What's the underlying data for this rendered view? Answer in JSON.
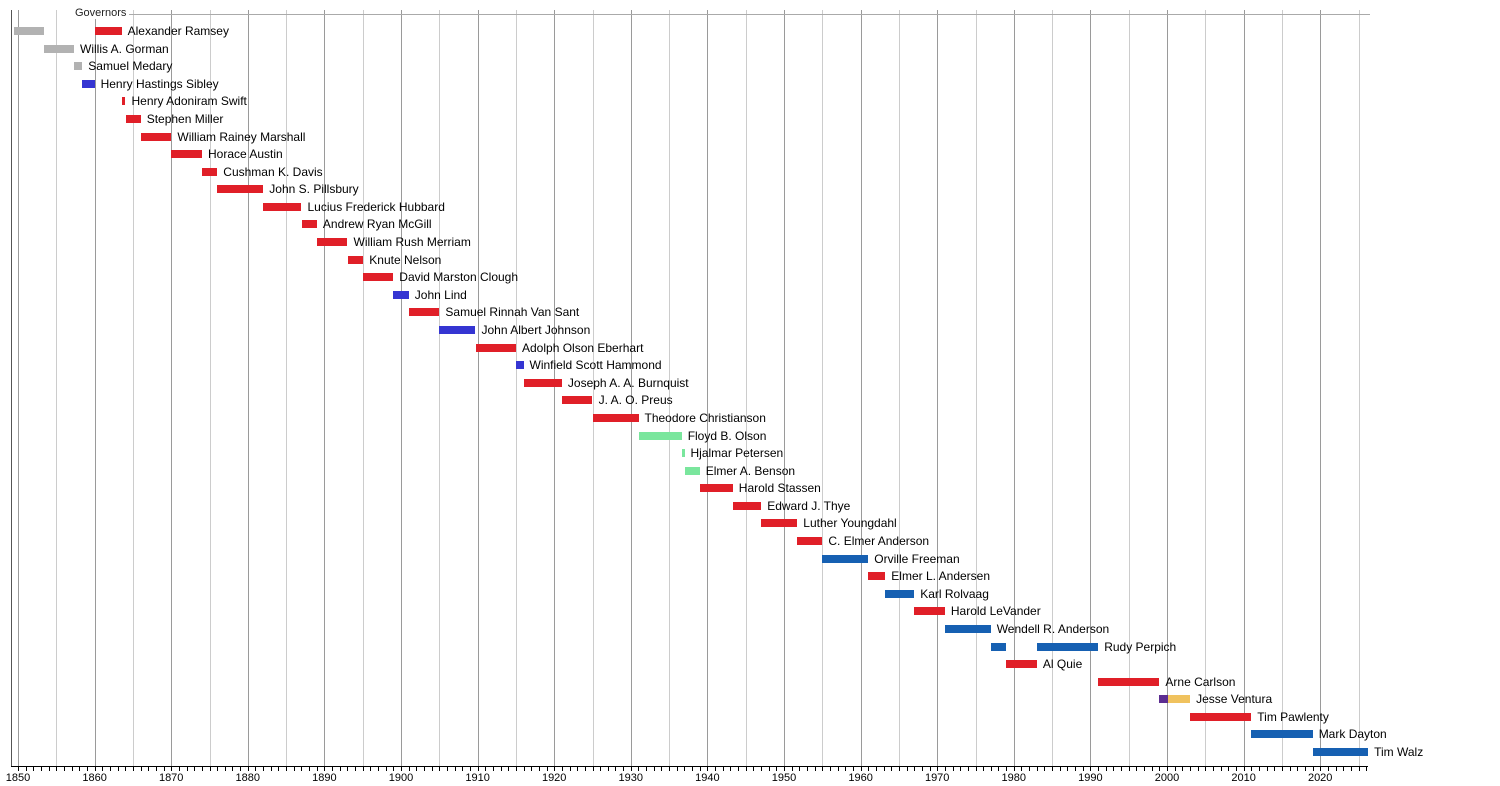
{
  "chart_data": {
    "type": "timeline",
    "title": "Governors",
    "axis": {
      "x_min": 1849.1,
      "x_max": 2026.3,
      "decade_labels": [
        "1850",
        "1860",
        "1870",
        "1880",
        "1890",
        "1900",
        "1910",
        "1920",
        "1930",
        "1940",
        "1950",
        "1960",
        "1970",
        "1980",
        "1990",
        "2000",
        "2010",
        "2020"
      ],
      "gridline_start": 1850,
      "gridline_end": 2025,
      "gridline_step": 5,
      "tick_step": 1,
      "grid_on": true
    },
    "colors": {
      "gray": "#b2b2b2",
      "red": "#e01f28",
      "blue": "#3535d2",
      "green": "#7ae69d",
      "dfl_blue": "#1660b2",
      "purple": "#5c2d91",
      "yellow": "#f0c25e",
      "decade_grid": "#9a9a9a",
      "half_decade_grid": "#cccccc",
      "axis_line": "#000000",
      "border_line": "#555555",
      "top_line": "#aaaaaa"
    },
    "governors": [
      {
        "name": "Alexander Ramsey",
        "segments": [
          {
            "start": 1849.42,
            "end": 1853.37,
            "color": "gray"
          },
          {
            "start": 1860.0,
            "end": 1863.52,
            "color": "red"
          }
        ]
      },
      {
        "name": "Willis A. Gorman",
        "segments": [
          {
            "start": 1853.37,
            "end": 1857.31,
            "color": "gray"
          }
        ]
      },
      {
        "name": "Samuel Medary",
        "segments": [
          {
            "start": 1857.31,
            "end": 1858.39,
            "color": "gray"
          }
        ]
      },
      {
        "name": "Henry Hastings Sibley",
        "segments": [
          {
            "start": 1858.39,
            "end": 1860.0,
            "color": "blue"
          }
        ]
      },
      {
        "name": "Henry Adoniram Swift",
        "segments": [
          {
            "start": 1863.52,
            "end": 1864.03,
            "color": "red"
          }
        ]
      },
      {
        "name": "Stephen Miller",
        "segments": [
          {
            "start": 1864.03,
            "end": 1866.02,
            "color": "red"
          }
        ]
      },
      {
        "name": "William Rainey Marshall",
        "segments": [
          {
            "start": 1866.02,
            "end": 1870.02,
            "color": "red"
          }
        ]
      },
      {
        "name": "Horace Austin",
        "segments": [
          {
            "start": 1870.02,
            "end": 1874.02,
            "color": "red"
          }
        ]
      },
      {
        "name": "Cushman K. Davis",
        "segments": [
          {
            "start": 1874.02,
            "end": 1876.02,
            "color": "red"
          }
        ]
      },
      {
        "name": "John S. Pillsbury",
        "segments": [
          {
            "start": 1876.02,
            "end": 1882.03,
            "color": "red"
          }
        ]
      },
      {
        "name": "Lucius Frederick Hubbard",
        "segments": [
          {
            "start": 1882.03,
            "end": 1887.01,
            "color": "red"
          }
        ]
      },
      {
        "name": "Andrew Ryan McGill",
        "segments": [
          {
            "start": 1887.01,
            "end": 1889.02,
            "color": "red"
          }
        ]
      },
      {
        "name": "William Rush Merriam",
        "segments": [
          {
            "start": 1889.02,
            "end": 1893.01,
            "color": "red"
          }
        ]
      },
      {
        "name": "Knute Nelson",
        "segments": [
          {
            "start": 1893.01,
            "end": 1895.08,
            "color": "red"
          }
        ]
      },
      {
        "name": "David Marston Clough",
        "segments": [
          {
            "start": 1895.08,
            "end": 1899.0,
            "color": "red"
          }
        ]
      },
      {
        "name": "John Lind",
        "segments": [
          {
            "start": 1899.0,
            "end": 1901.02,
            "color": "blue"
          }
        ]
      },
      {
        "name": "Samuel Rinnah Van Sant",
        "segments": [
          {
            "start": 1901.02,
            "end": 1905.01,
            "color": "red"
          }
        ]
      },
      {
        "name": "John Albert Johnson",
        "segments": [
          {
            "start": 1905.01,
            "end": 1909.72,
            "color": "blue"
          }
        ]
      },
      {
        "name": "Adolph Olson Eberhart",
        "segments": [
          {
            "start": 1909.72,
            "end": 1915.01,
            "color": "red"
          }
        ]
      },
      {
        "name": "Winfield Scott Hammond",
        "segments": [
          {
            "start": 1915.01,
            "end": 1915.99,
            "color": "blue"
          }
        ]
      },
      {
        "name": "Joseph A. A. Burnquist",
        "segments": [
          {
            "start": 1915.99,
            "end": 1921.01,
            "color": "red"
          }
        ]
      },
      {
        "name": "J. A. O. Preus",
        "segments": [
          {
            "start": 1921.01,
            "end": 1925.01,
            "color": "red"
          }
        ]
      },
      {
        "name": "Theodore Christianson",
        "segments": [
          {
            "start": 1925.01,
            "end": 1931.01,
            "color": "red"
          }
        ]
      },
      {
        "name": "Floyd B. Olson",
        "segments": [
          {
            "start": 1931.01,
            "end": 1936.64,
            "color": "green"
          }
        ]
      },
      {
        "name": "Hjalmar Petersen",
        "segments": [
          {
            "start": 1936.64,
            "end": 1937.01,
            "color": "green"
          }
        ]
      },
      {
        "name": "Elmer A. Benson",
        "segments": [
          {
            "start": 1937.01,
            "end": 1939.0,
            "color": "green"
          }
        ]
      },
      {
        "name": "Harold Stassen",
        "segments": [
          {
            "start": 1939.0,
            "end": 1943.32,
            "color": "red"
          }
        ]
      },
      {
        "name": "Edward J. Thye",
        "segments": [
          {
            "start": 1943.32,
            "end": 1947.02,
            "color": "red"
          }
        ]
      },
      {
        "name": "Luther Youngdahl",
        "segments": [
          {
            "start": 1947.02,
            "end": 1951.74,
            "color": "red"
          }
        ]
      },
      {
        "name": "C. Elmer Anderson",
        "segments": [
          {
            "start": 1951.74,
            "end": 1955.01,
            "color": "red"
          }
        ]
      },
      {
        "name": "Orville Freeman",
        "segments": [
          {
            "start": 1955.01,
            "end": 1961.0,
            "color": "dfl_blue"
          }
        ]
      },
      {
        "name": "Elmer L. Andersen",
        "segments": [
          {
            "start": 1961.0,
            "end": 1963.23,
            "color": "red"
          }
        ]
      },
      {
        "name": "Karl Rolvaag",
        "segments": [
          {
            "start": 1963.23,
            "end": 1967.0,
            "color": "dfl_blue"
          }
        ]
      },
      {
        "name": "Harold LeVander",
        "segments": [
          {
            "start": 1967.0,
            "end": 1971.01,
            "color": "red"
          }
        ]
      },
      {
        "name": "Wendell R. Anderson",
        "segments": [
          {
            "start": 1971.01,
            "end": 1976.99,
            "color": "dfl_blue"
          }
        ]
      },
      {
        "name": "Rudy Perpich",
        "segments": [
          {
            "start": 1976.99,
            "end": 1979.01,
            "color": "dfl_blue"
          },
          {
            "start": 1983.01,
            "end": 1991.02,
            "color": "dfl_blue"
          }
        ]
      },
      {
        "name": "Al Quie",
        "segments": [
          {
            "start": 1979.01,
            "end": 1983.01,
            "color": "red"
          }
        ]
      },
      {
        "name": "Arne Carlson",
        "segments": [
          {
            "start": 1991.02,
            "end": 1999.01,
            "color": "red"
          }
        ]
      },
      {
        "name": "Jesse Ventura",
        "segments": [
          {
            "start": 1999.01,
            "end": 2000.1,
            "color": "purple"
          },
          {
            "start": 2000.1,
            "end": 2003.02,
            "color": "yellow"
          }
        ]
      },
      {
        "name": "Tim Pawlenty",
        "segments": [
          {
            "start": 2003.02,
            "end": 2011.01,
            "color": "red"
          }
        ]
      },
      {
        "name": "Mark Dayton",
        "segments": [
          {
            "start": 2011.01,
            "end": 2019.02,
            "color": "dfl_blue"
          }
        ]
      },
      {
        "name": "Tim Walz",
        "segments": [
          {
            "start": 2019.02,
            "end": 2026.25,
            "color": "dfl_blue"
          }
        ]
      }
    ]
  }
}
